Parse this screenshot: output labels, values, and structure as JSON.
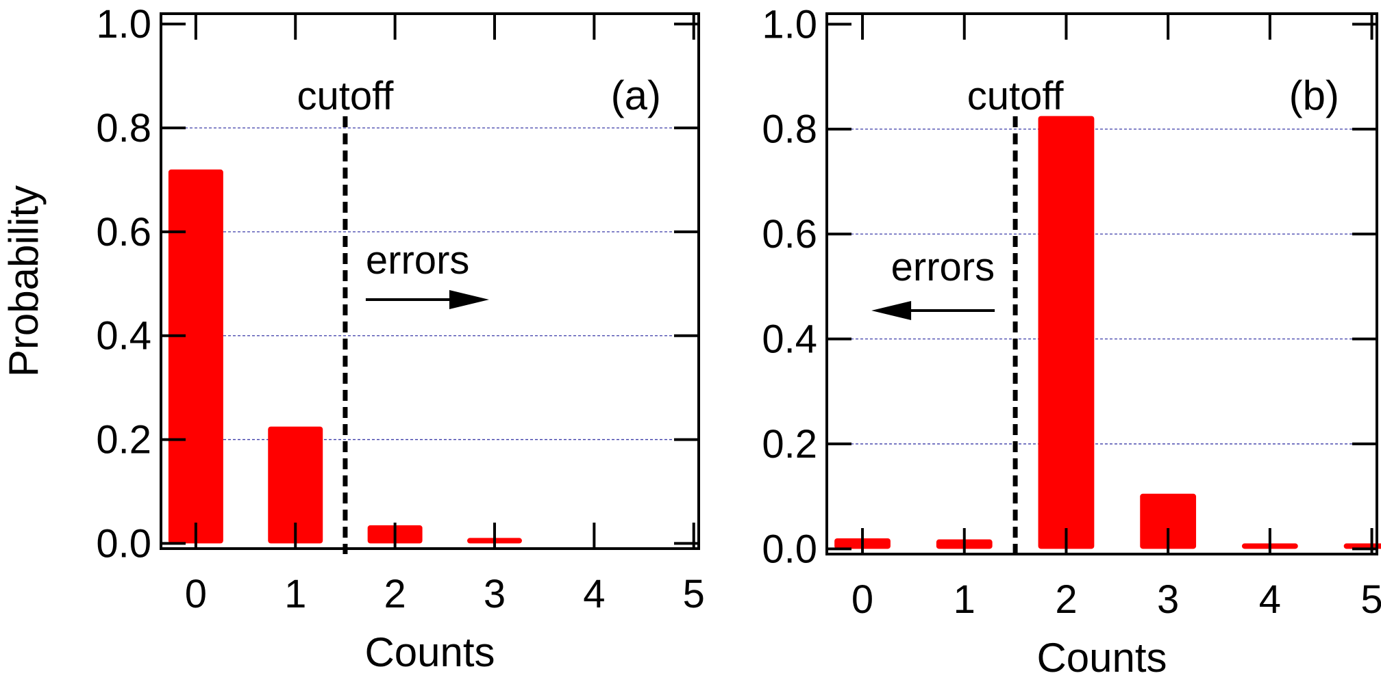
{
  "chart_data": [
    {
      "type": "bar",
      "panel_label": "(a)",
      "x": [
        0,
        1,
        2,
        3,
        4,
        5
      ],
      "values": [
        0.72,
        0.225,
        0.035,
        0.008,
        0.0,
        0.0
      ],
      "xlabel": "Counts",
      "ylabel": "Probability",
      "xlim": [
        -0.35,
        5.05
      ],
      "ylim": [
        -0.01,
        1.02
      ],
      "yticks": [
        "0.0",
        "0.2",
        "0.4",
        "0.6",
        "0.8",
        "1.0"
      ],
      "xticks": [
        "0",
        "1",
        "2",
        "3",
        "4",
        "5"
      ],
      "grid": "horizontal dashed",
      "bar_color": "#ff0000",
      "grid_color": "#3a3aa8",
      "cutoff": {
        "x": 1.5,
        "label": "cutoff"
      },
      "errors_annotation": {
        "label": "errors",
        "direction": "right"
      }
    },
    {
      "type": "bar",
      "panel_label": "(b)",
      "x": [
        0,
        1,
        2,
        3,
        4,
        5
      ],
      "values": [
        0.02,
        0.018,
        0.825,
        0.105,
        0.005,
        0.01
      ],
      "xlabel": "Counts",
      "ylabel": "",
      "xlim": [
        -0.35,
        5.05
      ],
      "ylim": [
        -0.01,
        1.02
      ],
      "yticks": [
        "0.0",
        "0.2",
        "0.4",
        "0.6",
        "0.8",
        "1.0"
      ],
      "xticks": [
        "0",
        "1",
        "2",
        "3",
        "4",
        "5"
      ],
      "grid": "horizontal dashed",
      "bar_color": "#ff0000",
      "grid_color": "#3a3aa8",
      "cutoff": {
        "x": 1.5,
        "label": "cutoff"
      },
      "errors_annotation": {
        "label": "errors",
        "direction": "left"
      }
    }
  ]
}
